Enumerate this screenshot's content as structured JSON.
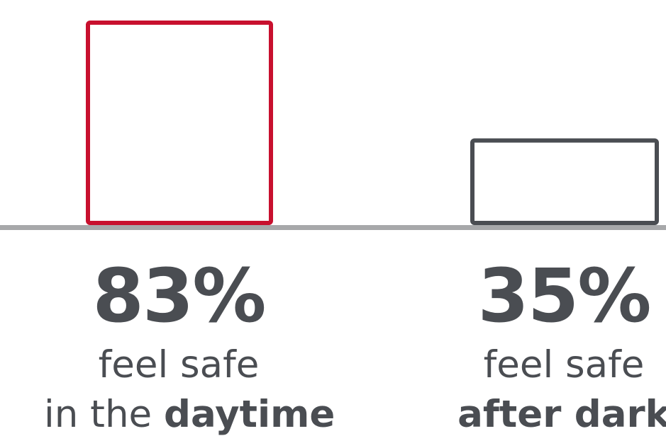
{
  "chart_data": {
    "type": "bar",
    "categories": [
      "daytime",
      "after dark"
    ],
    "values": [
      83,
      35
    ],
    "ylim": [
      0,
      100
    ],
    "series": [
      {
        "values": [
          83,
          35
        ]
      }
    ],
    "labels": [
      {
        "value": "83%",
        "line1": "feel safe",
        "line2_prefix": "in the ",
        "line2_bold": "daytime"
      },
      {
        "value": "35%",
        "line1": "feel safe",
        "line2_prefix": "",
        "line2_bold": "after dark"
      }
    ],
    "colors": {
      "daytime": "#c8102e",
      "after_dark": "#4a4d52",
      "baseline": "#a7a8aa"
    }
  }
}
